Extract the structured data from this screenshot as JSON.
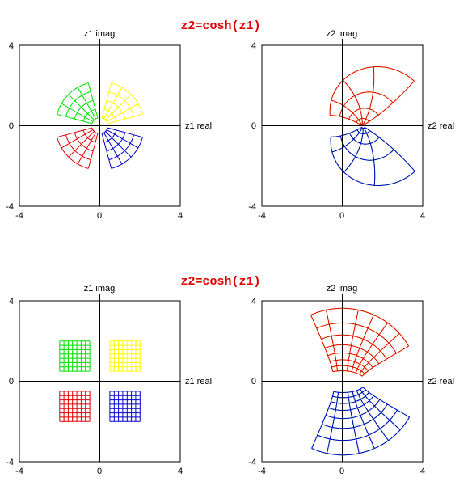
{
  "rows": [
    {
      "title": "z2=cosh(z1)",
      "left": {
        "x_label": "z1 real",
        "y_label": "z1 imag",
        "x_ticks": [
          "-4",
          "0",
          "4"
        ],
        "y_ticks": [
          "4",
          "0",
          "-4"
        ]
      },
      "right": {
        "x_label": "z2 real",
        "y_label": "z2 imag",
        "x_ticks": [
          "-4",
          "0",
          "4"
        ],
        "y_ticks": [
          "4",
          "0",
          "-4"
        ]
      }
    },
    {
      "title": "z2=cosh(z1)",
      "left": {
        "x_label": "z1 real",
        "y_label": "z1 imag",
        "x_ticks": [
          "-4",
          "0",
          "4"
        ],
        "y_ticks": [
          "4",
          "0",
          "-4"
        ]
      },
      "right": {
        "x_label": "z2 real",
        "y_label": "z2 imag",
        "x_ticks": [
          "-4",
          "0",
          "4"
        ],
        "y_ticks": [
          "4",
          "0",
          "-4"
        ]
      }
    }
  ],
  "colors": {
    "q1": "#ffff00",
    "q2": "#00dd00",
    "q3": "#dd0000",
    "q4": "#0000cc",
    "title": "#e00000"
  },
  "chart_data": [
    {
      "type": "polar-grid",
      "plane": "z1",
      "range": [
        -4,
        4
      ],
      "regions": [
        {
          "color": "q1",
          "r": [
            0.4,
            2.2
          ],
          "theta_deg": [
            15,
            75
          ]
        },
        {
          "color": "q2",
          "r": [
            0.4,
            2.2
          ],
          "theta_deg": [
            105,
            165
          ]
        },
        {
          "color": "q3",
          "r": [
            0.4,
            2.2
          ],
          "theta_deg": [
            195,
            255
          ]
        },
        {
          "color": "q4",
          "r": [
            0.4,
            2.2
          ],
          "theta_deg": [
            285,
            345
          ]
        }
      ]
    },
    {
      "type": "mapped-grid",
      "plane": "z2",
      "function": "cosh",
      "range": [
        -4,
        4
      ]
    },
    {
      "type": "rect-grid",
      "plane": "z1",
      "range": [
        -4,
        4
      ],
      "regions": [
        {
          "color": "q1",
          "x": [
            0.5,
            2.0
          ],
          "y": [
            0.5,
            2.0
          ]
        },
        {
          "color": "q2",
          "x": [
            -2.0,
            -0.5
          ],
          "y": [
            0.5,
            2.0
          ]
        },
        {
          "color": "q3",
          "x": [
            -2.0,
            -0.5
          ],
          "y": [
            -2.0,
            -0.5
          ]
        },
        {
          "color": "q4",
          "x": [
            0.5,
            2.0
          ],
          "y": [
            -2.0,
            -0.5
          ]
        }
      ]
    },
    {
      "type": "mapped-grid",
      "plane": "z2",
      "function": "cosh",
      "range": [
        -4,
        4
      ]
    }
  ]
}
